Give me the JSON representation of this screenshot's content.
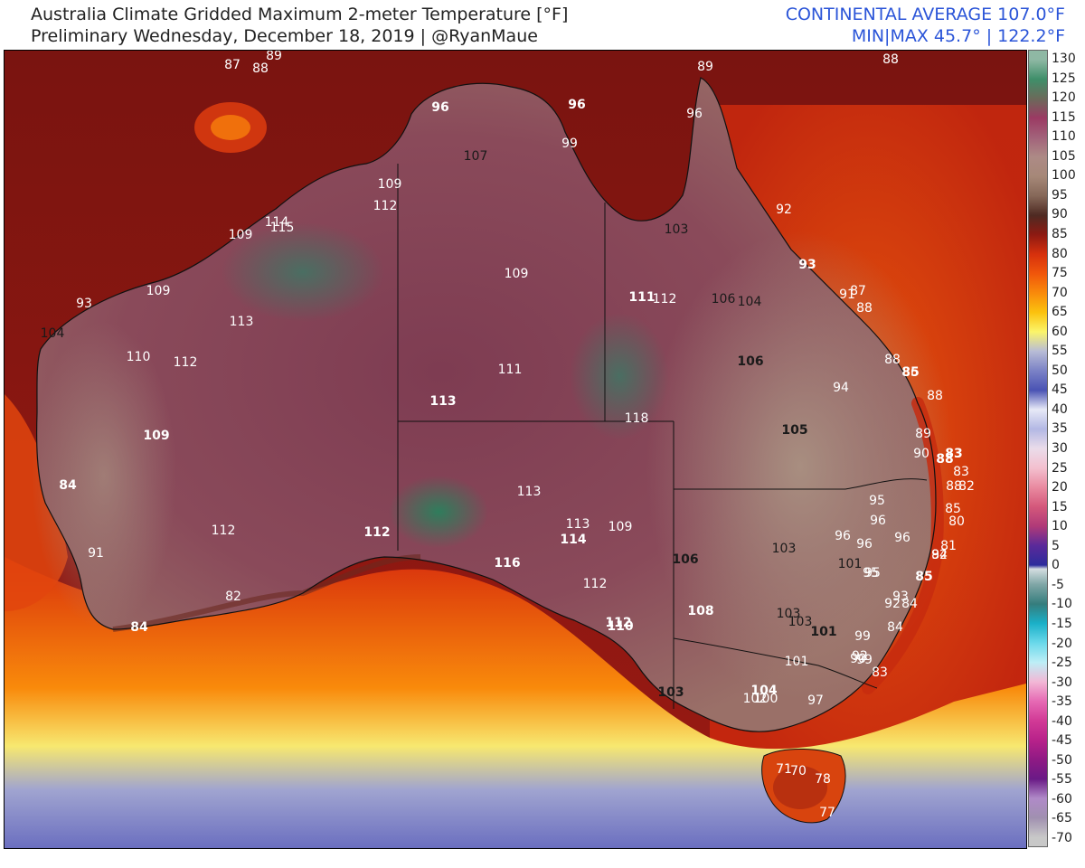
{
  "header": {
    "title_line1": "Australia Climate Gridded Maximum 2-meter Temperature [°F]",
    "title_line2": "Preliminary Wednesday, December 18, 2019 | @RyanMaue",
    "stat_line1": "CONTINENTAL AVERAGE 107.0°F",
    "stat_line2": "MIN|MAX 45.7° | 122.2°F"
  },
  "colors": {
    "title": "#222222",
    "stats": "#2b55d8"
  },
  "colorbar": {
    "ticks": [
      "130",
      "125",
      "120",
      "115",
      "110",
      "105",
      "100",
      "95",
      "90",
      "85",
      "80",
      "75",
      "70",
      "65",
      "60",
      "55",
      "50",
      "45",
      "40",
      "35",
      "30",
      "25",
      "20",
      "15",
      "10",
      "5",
      "0",
      "-5",
      "-10",
      "-15",
      "-20",
      "-25",
      "-30",
      "-35",
      "-40",
      "-45",
      "-50",
      "-55",
      "-60",
      "-65",
      "-70"
    ],
    "stops": [
      {
        "v": 130,
        "c": "#8fb8a4"
      },
      {
        "v": 125,
        "c": "#3f8f6a"
      },
      {
        "v": 120,
        "c": "#6b6a5a"
      },
      {
        "v": 115,
        "c": "#9b3a63"
      },
      {
        "v": 110,
        "c": "#a2627a"
      },
      {
        "v": 105,
        "c": "#ad8a86"
      },
      {
        "v": 100,
        "c": "#a68878"
      },
      {
        "v": 95,
        "c": "#866859"
      },
      {
        "v": 90,
        "c": "#4e2a22"
      },
      {
        "v": 85,
        "c": "#8d1a12"
      },
      {
        "v": 80,
        "c": "#d6300d"
      },
      {
        "v": 75,
        "c": "#f0560b"
      },
      {
        "v": 70,
        "c": "#f98a0b"
      },
      {
        "v": 65,
        "c": "#fbc20e"
      },
      {
        "v": 60,
        "c": "#fbf56a"
      },
      {
        "v": 55,
        "c": "#b8bcd6"
      },
      {
        "v": 50,
        "c": "#7b82c6"
      },
      {
        "v": 45,
        "c": "#4a53b4"
      },
      {
        "v": 40,
        "c": "#e7e9f7"
      },
      {
        "v": 35,
        "c": "#b3b8e4"
      },
      {
        "v": 30,
        "c": "#eadcea"
      },
      {
        "v": 25,
        "c": "#f3c0cf"
      },
      {
        "v": 20,
        "c": "#e98aa0"
      },
      {
        "v": 15,
        "c": "#d4587b"
      },
      {
        "v": 10,
        "c": "#b03a78"
      },
      {
        "v": 5,
        "c": "#5a2a9a"
      },
      {
        "v": 0,
        "c": "#2d2c9c"
      },
      {
        "v": -1,
        "c": "#d4dde0"
      },
      {
        "v": -5,
        "c": "#7fa6a6"
      },
      {
        "v": -10,
        "c": "#357d7d"
      },
      {
        "v": -15,
        "c": "#1ab0c8"
      },
      {
        "v": -20,
        "c": "#6ad8ea"
      },
      {
        "v": -25,
        "c": "#bdeef6"
      },
      {
        "v": -30,
        "c": "#f2b8d6"
      },
      {
        "v": -35,
        "c": "#e66ab4"
      },
      {
        "v": -40,
        "c": "#d23a96"
      },
      {
        "v": -45,
        "c": "#b8228a"
      },
      {
        "v": -50,
        "c": "#8f1a84"
      },
      {
        "v": -55,
        "c": "#6a1a86"
      },
      {
        "v": -60,
        "c": "#b08ac8"
      },
      {
        "v": -65,
        "c": "#a090b0"
      },
      {
        "v": -70,
        "c": "#c8c8c8"
      }
    ]
  },
  "station_labels": [
    {
      "t": "87",
      "c": "w"
    },
    {
      "t": "88",
      "c": "w"
    },
    {
      "t": "89",
      "c": "w"
    },
    {
      "t": "89",
      "c": "w"
    },
    {
      "t": "88",
      "c": "w"
    },
    {
      "t": "96",
      "c": "w",
      "b": true
    },
    {
      "t": "96",
      "c": "w",
      "b": true
    },
    {
      "t": "96",
      "c": "w"
    },
    {
      "t": "99",
      "c": "w"
    },
    {
      "t": "107",
      "c": "k"
    },
    {
      "t": "109",
      "c": "w"
    },
    {
      "t": "112",
      "c": "w"
    },
    {
      "t": "114",
      "c": "w"
    },
    {
      "t": "115",
      "c": "w"
    },
    {
      "t": "109",
      "c": "w"
    },
    {
      "t": "109",
      "c": "w"
    },
    {
      "t": "103",
      "c": "k"
    },
    {
      "t": "92",
      "c": "w"
    },
    {
      "t": "93",
      "c": "w",
      "b": true
    },
    {
      "t": "109",
      "c": "w"
    },
    {
      "t": "93",
      "c": "w"
    },
    {
      "t": "113",
      "c": "w"
    },
    {
      "t": "111",
      "c": "w",
      "b": true
    },
    {
      "t": "112",
      "c": "w"
    },
    {
      "t": "106",
      "c": "k"
    },
    {
      "t": "104",
      "c": "k"
    },
    {
      "t": "91",
      "c": "w"
    },
    {
      "t": "87",
      "c": "w"
    },
    {
      "t": "88",
      "c": "w"
    },
    {
      "t": "104",
      "c": "k"
    },
    {
      "t": "110",
      "c": "w"
    },
    {
      "t": "112",
      "c": "w"
    },
    {
      "t": "111",
      "c": "w"
    },
    {
      "t": "106",
      "c": "k",
      "b": true
    },
    {
      "t": "88",
      "c": "w"
    },
    {
      "t": "85",
      "c": "w",
      "b": true
    },
    {
      "t": "88",
      "c": "w"
    },
    {
      "t": "94",
      "c": "w"
    },
    {
      "t": "86",
      "c": "w"
    },
    {
      "t": "113",
      "c": "w",
      "b": true
    },
    {
      "t": "118",
      "c": "w"
    },
    {
      "t": "105",
      "c": "k",
      "b": true
    },
    {
      "t": "109",
      "c": "w",
      "b": true
    },
    {
      "t": "89",
      "c": "w"
    },
    {
      "t": "90",
      "c": "w"
    },
    {
      "t": "88",
      "c": "w",
      "b": true
    },
    {
      "t": "83",
      "c": "w",
      "b": true
    },
    {
      "t": "83",
      "c": "w"
    },
    {
      "t": "84",
      "c": "w",
      "b": true
    },
    {
      "t": "113",
      "c": "w"
    },
    {
      "t": "88",
      "c": "w"
    },
    {
      "t": "82",
      "c": "w"
    },
    {
      "t": "95",
      "c": "w"
    },
    {
      "t": "85",
      "c": "w"
    },
    {
      "t": "96",
      "c": "w"
    },
    {
      "t": "80",
      "c": "w"
    },
    {
      "t": "113",
      "c": "w"
    },
    {
      "t": "109",
      "c": "w"
    },
    {
      "t": "112",
      "c": "w"
    },
    {
      "t": "112",
      "c": "w",
      "b": true
    },
    {
      "t": "114",
      "c": "w",
      "b": true
    },
    {
      "t": "96",
      "c": "w"
    },
    {
      "t": "96",
      "c": "w"
    },
    {
      "t": "96",
      "c": "w"
    },
    {
      "t": "81",
      "c": "w"
    },
    {
      "t": "95",
      "c": "w"
    },
    {
      "t": "92",
      "c": "w"
    },
    {
      "t": "91",
      "c": "w"
    },
    {
      "t": "103",
      "c": "k"
    },
    {
      "t": "84",
      "c": "w"
    },
    {
      "t": "116",
      "c": "w",
      "b": true
    },
    {
      "t": "106",
      "c": "k",
      "b": true
    },
    {
      "t": "101",
      "c": "k"
    },
    {
      "t": "95",
      "c": "w"
    },
    {
      "t": "85",
      "c": "w",
      "b": true
    },
    {
      "t": "112",
      "c": "w"
    },
    {
      "t": "93",
      "c": "w"
    },
    {
      "t": "92",
      "c": "w"
    },
    {
      "t": "84",
      "c": "w"
    },
    {
      "t": "82",
      "c": "w"
    },
    {
      "t": "103",
      "c": "k"
    },
    {
      "t": "108",
      "c": "w",
      "b": true
    },
    {
      "t": "112",
      "c": "w",
      "b": true
    },
    {
      "t": "110",
      "c": "w",
      "b": true
    },
    {
      "t": "84",
      "c": "w",
      "b": true
    },
    {
      "t": "103",
      "c": "k"
    },
    {
      "t": "84",
      "c": "w"
    },
    {
      "t": "101",
      "c": "k",
      "b": true
    },
    {
      "t": "99",
      "c": "w"
    },
    {
      "t": "99",
      "c": "w"
    },
    {
      "t": "92",
      "c": "w"
    },
    {
      "t": "90",
      "c": "w"
    },
    {
      "t": "101",
      "c": "w"
    },
    {
      "t": "83",
      "c": "w"
    },
    {
      "t": "103",
      "c": "k",
      "b": true
    },
    {
      "t": "104",
      "c": "w",
      "b": true
    },
    {
      "t": "102",
      "c": "w"
    },
    {
      "t": "100",
      "c": "w"
    },
    {
      "t": "97",
      "c": "w"
    },
    {
      "t": "71",
      "c": "w"
    },
    {
      "t": "70",
      "c": "w"
    },
    {
      "t": "78",
      "c": "w"
    },
    {
      "t": "77",
      "c": "w"
    }
  ]
}
